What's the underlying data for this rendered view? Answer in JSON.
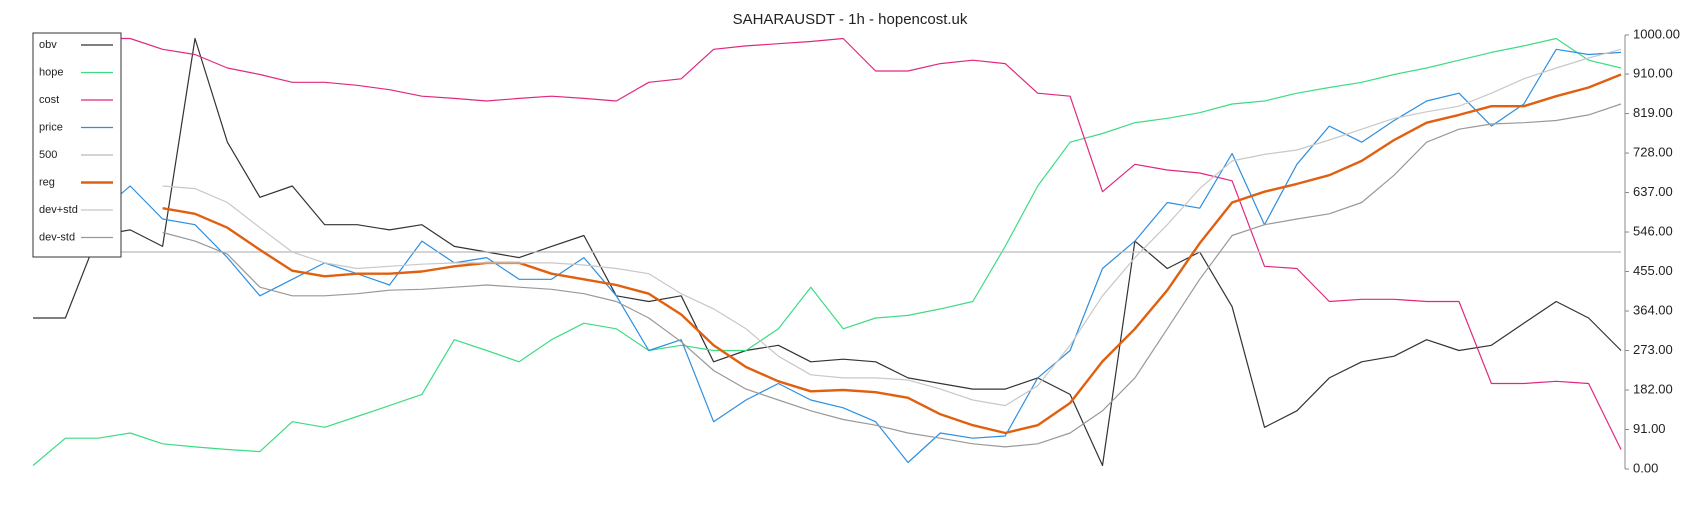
{
  "chart_data": {
    "type": "line",
    "title": "SAHARAUSDT - 1h - hopencost.uk",
    "legend": "upper left",
    "y_axis_side": "right",
    "ylim": [
      0,
      1000
    ],
    "yticks": [
      {
        "value": 0,
        "label": "0.00"
      },
      {
        "value": 91,
        "label": "91.00"
      },
      {
        "value": 182,
        "label": "182.00"
      },
      {
        "value": 273,
        "label": "273.00"
      },
      {
        "value": 364,
        "label": "364.00"
      },
      {
        "value": 455,
        "label": "455.00"
      },
      {
        "value": 546,
        "label": "546.00"
      },
      {
        "value": 637,
        "label": "637.00"
      },
      {
        "value": 728,
        "label": "728.00"
      },
      {
        "value": 819,
        "label": "819.00"
      },
      {
        "value": 910,
        "label": "910.00"
      },
      {
        "value": 1000,
        "label": "1000.00"
      }
    ],
    "series": [
      {
        "name": "obv",
        "color": "#333333",
        "width": 1.2,
        "values": [
          348,
          348,
          538,
          551,
          513,
          992,
          753,
          626,
          652,
          563,
          563,
          551,
          563,
          513,
          500,
          487,
          513,
          538,
          399,
          386,
          399,
          247,
          273,
          285,
          247,
          253,
          247,
          210,
          197,
          184,
          184,
          210,
          172,
          8,
          525,
          462,
          500,
          374,
          96,
          134,
          210,
          247,
          260,
          298,
          273,
          285,
          336,
          386,
          348,
          273
        ]
      },
      {
        "name": "hope",
        "color": "#3ddc84",
        "width": 1.2,
        "values": [
          8,
          71,
          71,
          83,
          58,
          51,
          45,
          40,
          109,
          96,
          121,
          146,
          172,
          298,
          273,
          247,
          298,
          336,
          323,
          273,
          285,
          273,
          273,
          323,
          419,
          323,
          348,
          354,
          369,
          386,
          513,
          652,
          753,
          773,
          798,
          808,
          821,
          841,
          848,
          866,
          879,
          891,
          909,
          924,
          942,
          960,
          975,
          992,
          942,
          924
        ]
      },
      {
        "name": "cost",
        "color": "#e0287f",
        "width": 1.2,
        "values": [
          967,
          985,
          992,
          992,
          967,
          955,
          924,
          909,
          891,
          891,
          884,
          874,
          859,
          854,
          848,
          854,
          859,
          854,
          848,
          891,
          899,
          967,
          975,
          980,
          985,
          992,
          917,
          917,
          934,
          942,
          934,
          866,
          859,
          639,
          702,
          689,
          682,
          664,
          467,
          462,
          386,
          391,
          391,
          386,
          386,
          197,
          197,
          202,
          197,
          45
        ]
      },
      {
        "name": "price",
        "color": "#2d8fe0",
        "width": 1.2,
        "values": [
          563,
          576,
          588,
          652,
          576,
          563,
          487,
          399,
          437,
          475,
          450,
          424,
          525,
          475,
          487,
          437,
          437,
          487,
          399,
          273,
          298,
          109,
          159,
          197,
          159,
          141,
          109,
          15,
          83,
          71,
          76,
          210,
          273,
          462,
          525,
          614,
          601,
          727,
          563,
          702,
          790,
          753,
          803,
          848,
          866,
          790,
          841,
          967,
          955,
          960
        ]
      },
      {
        "name": "500",
        "color": "#bbbbbb",
        "width": 1.2,
        "values": [
          500,
          500,
          500,
          500,
          500,
          500,
          500,
          500,
          500,
          500,
          500,
          500,
          500,
          500,
          500,
          500,
          500,
          500,
          500,
          500,
          500,
          500,
          500,
          500,
          500,
          500,
          500,
          500,
          500,
          500,
          500,
          500,
          500,
          500,
          500,
          500,
          500,
          500,
          500,
          500,
          500,
          500,
          500,
          500,
          500,
          500,
          500,
          500,
          500,
          500
        ]
      },
      {
        "name": "reg",
        "color": "#e06010",
        "width": 2.4,
        "values": [
          null,
          null,
          null,
          null,
          601,
          588,
          556,
          505,
          457,
          444,
          450,
          450,
          455,
          467,
          475,
          475,
          450,
          437,
          424,
          404,
          356,
          285,
          235,
          202,
          179,
          182,
          177,
          164,
          126,
          101,
          83,
          101,
          152,
          248,
          323,
          412,
          520,
          614,
          639,
          657,
          677,
          710,
          758,
          798,
          816,
          836,
          836,
          859,
          879,
          909
        ]
      },
      {
        "name": "dev+std",
        "color": "#c8c8c8",
        "width": 1.2,
        "values": [
          null,
          null,
          null,
          null,
          652,
          646,
          614,
          556,
          500,
          475,
          462,
          467,
          472,
          475,
          475,
          475,
          475,
          470,
          462,
          450,
          404,
          369,
          323,
          260,
          217,
          210,
          210,
          205,
          184,
          159,
          146,
          192,
          285,
          399,
          487,
          563,
          646,
          710,
          725,
          735,
          758,
          783,
          808,
          823,
          836,
          866,
          899,
          924,
          947,
          967
        ]
      },
      {
        "name": "dev-std",
        "color": "#999999",
        "width": 1.2,
        "values": [
          null,
          null,
          null,
          null,
          545,
          525,
          495,
          419,
          399,
          399,
          404,
          412,
          414,
          419,
          424,
          419,
          414,
          404,
          386,
          348,
          293,
          227,
          184,
          159,
          134,
          114,
          101,
          83,
          71,
          58,
          51,
          58,
          83,
          134,
          210,
          323,
          437,
          538,
          563,
          576,
          588,
          614,
          677,
          753,
          783,
          795,
          798,
          803,
          816,
          841
        ]
      }
    ]
  }
}
